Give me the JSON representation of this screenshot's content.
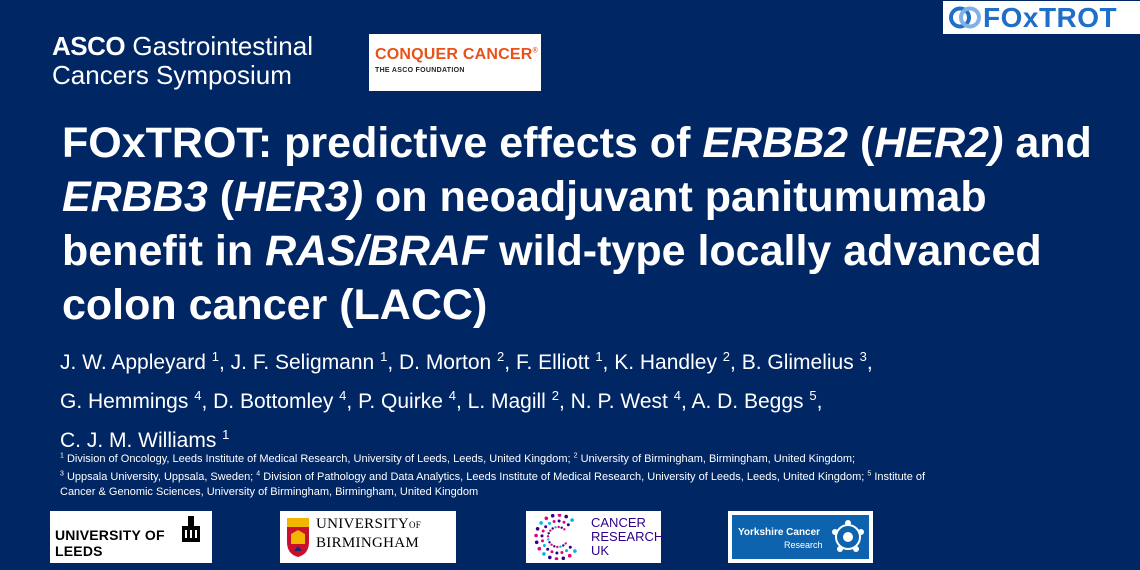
{
  "header": {
    "asco_logo": {
      "brand": "ASCO",
      "line1_rest": "Gastrointestinal",
      "line2": "Cancers Symposium"
    },
    "conquer_logo": {
      "name": "CONQUER CANCER",
      "reg": "®",
      "sub": "THE ASCO FOUNDATION",
      "accent_color": "#e8511a"
    },
    "foxtrot_logo": {
      "word": "FOxTROT",
      "mark_icon": "foxtrot-loop-icon",
      "color": "#1f6fc8"
    }
  },
  "title": {
    "segments": [
      {
        "text": "FOxTROT: predictive effects of ",
        "italic": false
      },
      {
        "text": "ERBB2",
        "italic": true
      },
      {
        "text": " (",
        "italic": false
      },
      {
        "text": "HER2)",
        "italic": true
      },
      {
        "text": " and ",
        "italic": false
      },
      {
        "text": "ERBB3",
        "italic": true
      },
      {
        "text": " (",
        "italic": false
      },
      {
        "text": "HER3)",
        "italic": true
      },
      {
        "text": " on neoadjuvant panitumumab benefit in ",
        "italic": false
      },
      {
        "text": "RAS/BRAF",
        "italic": true
      },
      {
        "text": " wild-type locally advanced colon cancer (LACC)",
        "italic": false
      }
    ]
  },
  "authors": [
    {
      "name": "J. W. Appleyard",
      "aff": "1"
    },
    {
      "name": "J. F. Seligmann",
      "aff": "1"
    },
    {
      "name": "D. Morton",
      "aff": "2"
    },
    {
      "name": "F. Elliott",
      "aff": "1"
    },
    {
      "name": "K. Handley",
      "aff": "2"
    },
    {
      "name": "B. Glimelius",
      "aff": "3"
    },
    {
      "name": "G. Hemmings",
      "aff": "4"
    },
    {
      "name": "D. Bottomley",
      "aff": "4"
    },
    {
      "name": "P. Quirke",
      "aff": "4"
    },
    {
      "name": "L. Magill",
      "aff": "2"
    },
    {
      "name": "N. P. West",
      "aff": "4"
    },
    {
      "name": "A. D. Beggs",
      "aff": "5"
    },
    {
      "name": "C. J. M. Williams",
      "aff": "1"
    }
  ],
  "affiliations": [
    {
      "num": "1",
      "text": "Division of Oncology, Leeds Institute of Medical Research, University of Leeds, Leeds, United Kingdom;"
    },
    {
      "num": "2",
      "text": "University of Birmingham, Birmingham, United Kingdom;"
    },
    {
      "num": "3",
      "text": "Uppsala University, Uppsala, Sweden;"
    },
    {
      "num": "4",
      "text": "Division of Pathology and Data Analytics, Leeds Institute of Medical Research, University of Leeds, Leeds, United Kingdom;"
    },
    {
      "num": "5",
      "text": "Institute of Cancer & Genomic Sciences, University of Birmingham, Birmingham, United Kingdom"
    }
  ],
  "footer_logos": {
    "leeds": {
      "text": "UNIVERSITY OF LEEDS",
      "icon": "parkinson-building-icon"
    },
    "birmingham": {
      "line1": "UNIVERSITY",
      "line1_of": "OF",
      "line2": "BIRMINGHAM",
      "icon": "university-crest-icon"
    },
    "cruk": {
      "lines": [
        "CANCER",
        "RESEARCH",
        "UK"
      ],
      "icon": "cruk-dots-icon",
      "color": "#2e008b"
    },
    "ycr": {
      "line1": "Yorkshire Cancer",
      "line2": "Research",
      "icon": "white-rose-icon",
      "color": "#0d63ad"
    }
  },
  "colors": {
    "background": "#002664",
    "text": "#ffffff"
  }
}
